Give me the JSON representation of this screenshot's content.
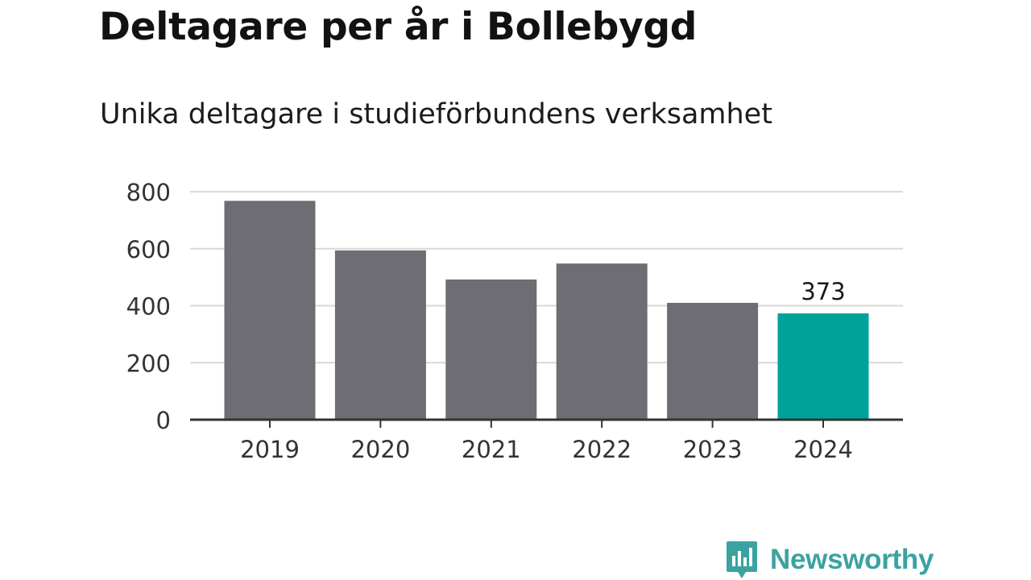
{
  "header": {
    "title": "Deltagare per år i Bollebygd",
    "subtitle": "Unika deltagare i studieförbundens verksamhet"
  },
  "chart_data": {
    "type": "bar",
    "categories": [
      "2019",
      "2020",
      "2021",
      "2022",
      "2023",
      "2024"
    ],
    "values": [
      768,
      594,
      492,
      548,
      410,
      373
    ],
    "ylim": [
      0,
      800
    ],
    "yticks": [
      0,
      200,
      400,
      600,
      800
    ],
    "grid": true,
    "data_labels": [
      {
        "category": "2024",
        "text": "373"
      }
    ],
    "colors": {
      "bar": "#6e6d73",
      "highlight": "#00a399",
      "highlight_category": "2024",
      "grid": "#d9d9d9",
      "axis": "#333333",
      "text": "#333333"
    }
  },
  "branding": {
    "logo_text": "Newsworthy",
    "logo_icon": "bar-chart-speech-bubble-icon",
    "color": "#3aa3a0"
  }
}
